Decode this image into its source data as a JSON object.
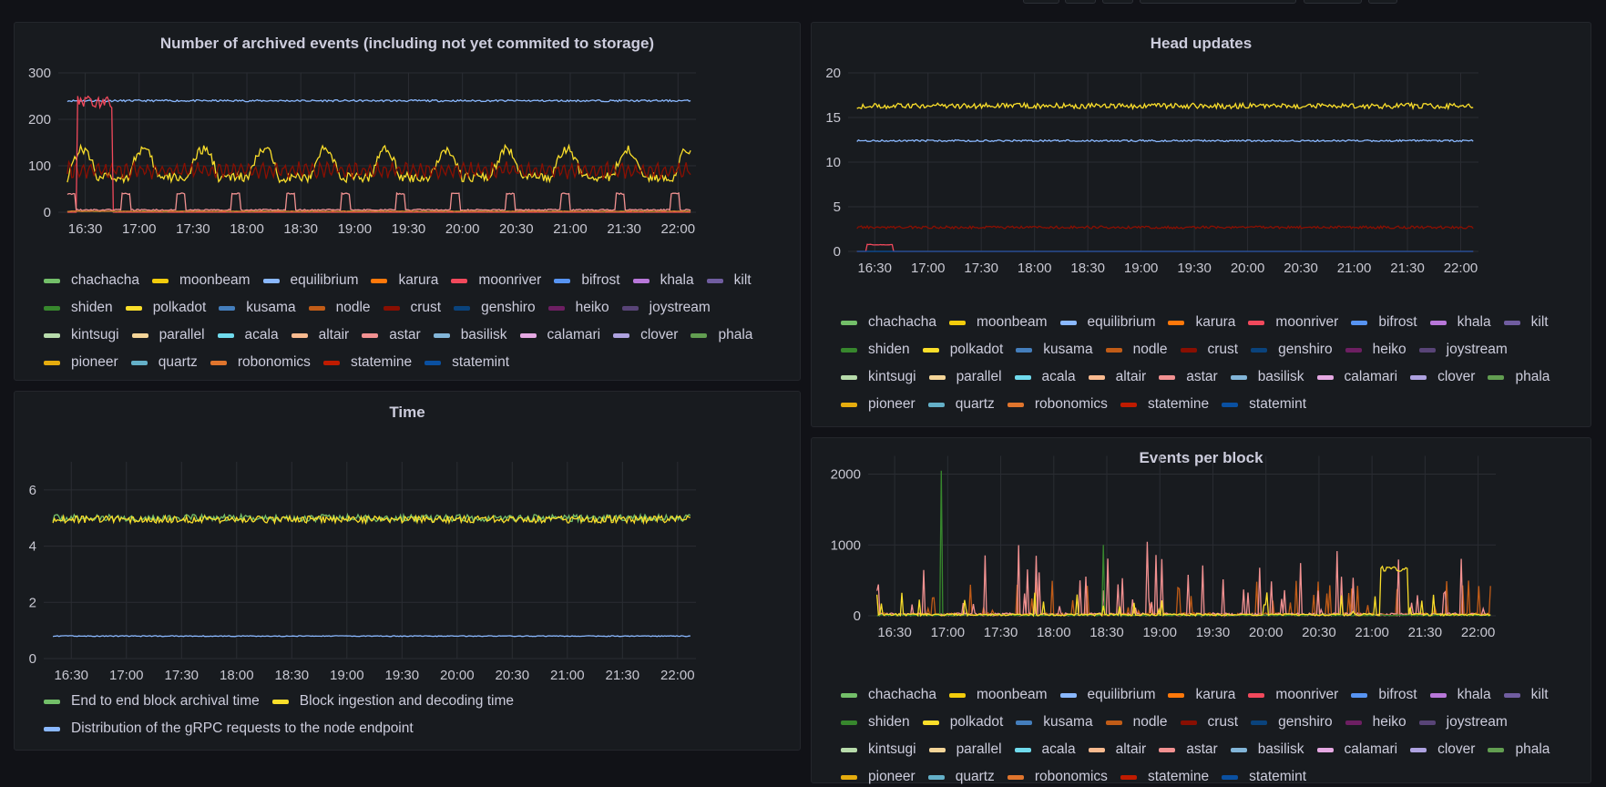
{
  "toolbar": {
    "buttons": [
      "btn-1",
      "btn-2",
      "btn-3",
      "time-range",
      "zoom",
      "refresh"
    ]
  },
  "series_legend": [
    {
      "name": "chachacha",
      "color": "#73bf69"
    },
    {
      "name": "moonbeam",
      "color": "#f2cc0c"
    },
    {
      "name": "equilibrium",
      "color": "#8ab8ff"
    },
    {
      "name": "karura",
      "color": "#ff780a"
    },
    {
      "name": "moonriver",
      "color": "#f2495c"
    },
    {
      "name": "bifrost",
      "color": "#5794f2"
    },
    {
      "name": "khala",
      "color": "#b877d9"
    },
    {
      "name": "kilt",
      "color": "#705da0"
    },
    {
      "name": "shiden",
      "color": "#37872d"
    },
    {
      "name": "polkadot",
      "color": "#fade2a"
    },
    {
      "name": "kusama",
      "color": "#447ebc"
    },
    {
      "name": "nodle",
      "color": "#c15c17"
    },
    {
      "name": "crust",
      "color": "#890f02"
    },
    {
      "name": "genshiro",
      "color": "#0a437c"
    },
    {
      "name": "heiko",
      "color": "#6d1f62"
    },
    {
      "name": "joystream",
      "color": "#584477"
    },
    {
      "name": "kintsugi",
      "color": "#b7dbab"
    },
    {
      "name": "parallel",
      "color": "#f4d598"
    },
    {
      "name": "acala",
      "color": "#70dbed"
    },
    {
      "name": "altair",
      "color": "#f9ba8f"
    },
    {
      "name": "astar",
      "color": "#f29191"
    },
    {
      "name": "basilisk",
      "color": "#82b5d8"
    },
    {
      "name": "calamari",
      "color": "#e5a8e2"
    },
    {
      "name": "clover",
      "color": "#aea2e0"
    },
    {
      "name": "phala",
      "color": "#629e51"
    },
    {
      "name": "pioneer",
      "color": "#e5ac0e"
    },
    {
      "name": "quartz",
      "color": "#64b0c8"
    },
    {
      "name": "robonomics",
      "color": "#e0752d"
    },
    {
      "name": "statemine",
      "color": "#bf1b00"
    },
    {
      "name": "statemint",
      "color": "#0a50a1"
    }
  ],
  "chart_data": [
    {
      "id": "archived-events",
      "type": "line",
      "title": "Number of archived events (including not yet commited to storage)",
      "x_ticks": [
        "16:30",
        "17:00",
        "17:30",
        "18:00",
        "18:30",
        "19:00",
        "19:30",
        "20:00",
        "20:30",
        "21:00",
        "21:30",
        "22:00"
      ],
      "y_ticks": [
        "0",
        "100",
        "200",
        "300"
      ],
      "ylim": [
        0,
        300
      ],
      "grid": true,
      "legend": "bottom",
      "series": [
        {
          "name": "equilibrium",
          "level": 240,
          "noise": 4,
          "color": "#8ab8ff"
        },
        {
          "name": "polkadot",
          "level": 100,
          "noise": 35,
          "color": "#fade2a",
          "periodic": true
        },
        {
          "name": "crust",
          "level": 90,
          "noise": 15,
          "color": "#890f02",
          "oscillating": true
        },
        {
          "name": "moonriver",
          "level": 0,
          "noise": 0,
          "color": "#f2495c",
          "burst": {
            "from": "16:25",
            "to": "16:45",
            "value": 250
          }
        },
        {
          "name": "astar",
          "level": 5,
          "noise": 3,
          "color": "#f29191",
          "steps": true
        },
        {
          "name": "shiden",
          "level": 2,
          "noise": 2,
          "color": "#37872d"
        },
        {
          "name": "robonomics",
          "level": 2,
          "noise": 1,
          "color": "#e0752d"
        }
      ]
    },
    {
      "id": "head-updates",
      "type": "line",
      "title": "Head updates",
      "x_ticks": [
        "16:30",
        "17:00",
        "17:30",
        "18:00",
        "18:30",
        "19:00",
        "19:30",
        "20:00",
        "20:30",
        "21:00",
        "21:30",
        "22:00"
      ],
      "y_ticks": [
        "0",
        "5",
        "10",
        "15",
        "20"
      ],
      "ylim": [
        0,
        20
      ],
      "grid": true,
      "legend": "bottom",
      "series": [
        {
          "name": "polkadot",
          "level": 16.3,
          "noise": 0.6,
          "color": "#fade2a"
        },
        {
          "name": "equilibrium",
          "level": 12.4,
          "noise": 0.2,
          "color": "#8ab8ff"
        },
        {
          "name": "crust",
          "level": 2.7,
          "noise": 0.3,
          "color": "#890f02"
        },
        {
          "name": "moonriver",
          "level": 0,
          "noise": 0,
          "color": "#f2495c",
          "burst": {
            "from": "16:25",
            "to": "16:40",
            "value": 0.8
          }
        },
        {
          "name": "statemint",
          "level": 0,
          "noise": 0,
          "color": "#0a50a1"
        }
      ]
    },
    {
      "id": "time",
      "type": "line",
      "title": "Time",
      "x_ticks": [
        "16:30",
        "17:00",
        "17:30",
        "18:00",
        "18:30",
        "19:00",
        "19:30",
        "20:00",
        "20:30",
        "21:00",
        "21:30",
        "22:00"
      ],
      "y_ticks": [
        "0",
        "2",
        "4",
        "6"
      ],
      "ylim": [
        0,
        7
      ],
      "grid": true,
      "legend": "bottom",
      "series": [
        {
          "name": "End to end block archival time",
          "color": "#73bf69",
          "level": 5.0,
          "noise": 0.25
        },
        {
          "name": "Block ingestion and decoding time",
          "color": "#fade2a",
          "level": 4.95,
          "noise": 0.25
        },
        {
          "name": "Distribution of the gRPC requests to the node endpoint",
          "color": "#8ab8ff",
          "level": 0.8,
          "noise": 0.03
        }
      ]
    },
    {
      "id": "events-per-block",
      "type": "line",
      "title": "Events per block",
      "x_ticks": [
        "16:30",
        "17:00",
        "17:30",
        "18:00",
        "18:30",
        "19:00",
        "19:30",
        "20:00",
        "20:30",
        "21:00",
        "21:30",
        "22:00"
      ],
      "y_ticks": [
        "0",
        "1000",
        "2000"
      ],
      "ylim": [
        0,
        2200
      ],
      "grid": true,
      "legend": "bottom",
      "series": [
        {
          "name": "nodle",
          "color": "#c15c17",
          "spikes": 500
        },
        {
          "name": "astar",
          "color": "#f29191",
          "spikes": 1050
        },
        {
          "name": "shiden",
          "color": "#37872d",
          "spike_peak": 2050
        },
        {
          "name": "polkadot",
          "color": "#fade2a",
          "plateau": {
            "from": "21:05",
            "to": "21:20",
            "value": 700
          }
        }
      ]
    }
  ],
  "time_legend": [
    {
      "name": "End to end block archival time",
      "color": "#73bf69"
    },
    {
      "name": "Block ingestion and decoding time",
      "color": "#fade2a"
    },
    {
      "name": "Distribution of the gRPC requests to the node endpoint",
      "color": "#8ab8ff"
    }
  ]
}
